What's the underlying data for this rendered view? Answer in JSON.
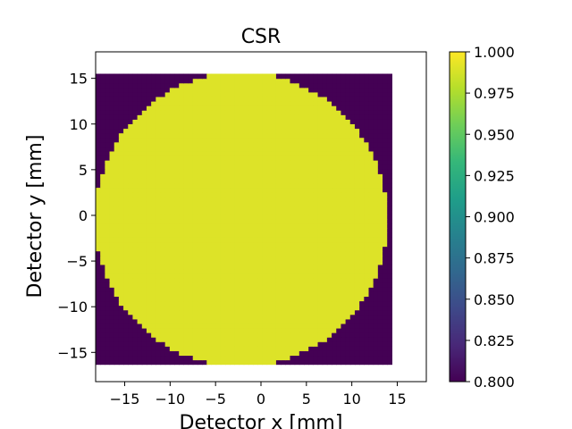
{
  "chart_data": {
    "type": "heatmap",
    "title": "CSR",
    "xlabel": "Detector x [mm]",
    "ylabel": "Detector y [mm]",
    "xlim": [
      -18.2,
      18.2
    ],
    "ylim": [
      -18.2,
      17.9
    ],
    "x_ticks": [
      -15,
      -10,
      -5,
      0,
      5,
      10,
      15
    ],
    "y_ticks": [
      -15,
      -10,
      -5,
      0,
      5,
      10,
      15
    ],
    "data_extent": {
      "x": [
        -18.2,
        14.4
      ],
      "y": [
        -16.3,
        15.5
      ]
    },
    "circle": {
      "center_x": -2.2,
      "center_y": -0.4,
      "radius": 16.1,
      "inside_value": 0.99,
      "outside_value": 0.8
    },
    "grid": false,
    "colorbar": {
      "colormap": "viridis",
      "range": [
        0.8,
        1.0
      ],
      "ticks": [
        0.8,
        0.825,
        0.85,
        0.875,
        0.9,
        0.925,
        0.95,
        0.975,
        1.0
      ],
      "tick_labels": [
        "0.800",
        "0.825",
        "0.850",
        "0.875",
        "0.900",
        "0.925",
        "0.950",
        "0.975",
        "1.000"
      ]
    },
    "colors": {
      "viridis_stops": [
        "#440154",
        "#482878",
        "#3e4989",
        "#31688e",
        "#26828e",
        "#1f9e89",
        "#35b779",
        "#6ece58",
        "#b5de2b",
        "#fde725"
      ]
    }
  }
}
